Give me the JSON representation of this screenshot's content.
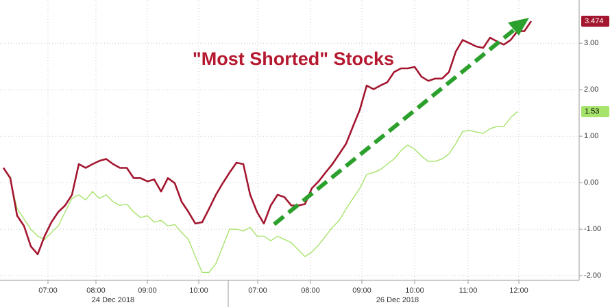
{
  "chart_data": {
    "type": "line",
    "title": "\"Most Shorted\" Stocks",
    "x": [
      0,
      1,
      2,
      3,
      4,
      5,
      6,
      7,
      8,
      9,
      10,
      11,
      12,
      13,
      14,
      15,
      16,
      17,
      18,
      19,
      20,
      21,
      22,
      23,
      24,
      25,
      26,
      27,
      28,
      29,
      30,
      31,
      32,
      33,
      34,
      35,
      36,
      37,
      38,
      39,
      40,
      41,
      42,
      43,
      44,
      45,
      46,
      47,
      48,
      49,
      50,
      51,
      52,
      53,
      54,
      55,
      56,
      57,
      58,
      59,
      60,
      61,
      62,
      63,
      64,
      65,
      66,
      67,
      68,
      69,
      70,
      71,
      72,
      73,
      74,
      75,
      76,
      77
    ],
    "series": [
      {
        "color": "#a3162f",
        "values": [
          0.32,
          0.1,
          -0.71,
          -0.93,
          -1.37,
          -1.54,
          -1.15,
          -0.85,
          -0.63,
          -0.49,
          -0.26,
          0.4,
          0.32,
          0.4,
          0.47,
          0.51,
          0.4,
          0.32,
          0.32,
          0.1,
          0.1,
          0.03,
          0.07,
          -0.19,
          0.1,
          -0.01,
          -0.41,
          -0.63,
          -0.88,
          -0.85,
          -0.56,
          -0.26,
          -0.01,
          0.22,
          0.43,
          0.4,
          -0.26,
          -0.63,
          -0.88,
          -0.49,
          -0.26,
          -0.31,
          -0.49,
          -0.49,
          -0.46,
          -0.12,
          0.03,
          0.22,
          0.4,
          0.62,
          0.84,
          1.21,
          1.57,
          2.09,
          2.01,
          2.09,
          2.16,
          2.38,
          2.46,
          2.46,
          2.49,
          2.28,
          2.19,
          2.24,
          2.24,
          2.38,
          2.82,
          3.07,
          3.0,
          2.93,
          2.9,
          3.12,
          3.04,
          2.97,
          3.07,
          3.26,
          3.26,
          3.474
        ]
      },
      {
        "color": "#a6e36b",
        "values": [
          0.32,
          0.07,
          -0.56,
          -0.78,
          -1.0,
          -1.15,
          -1.22,
          -1.07,
          -0.93,
          -0.63,
          -0.34,
          -0.26,
          -0.37,
          -0.19,
          -0.34,
          -0.26,
          -0.41,
          -0.49,
          -0.46,
          -0.63,
          -0.75,
          -0.71,
          -0.85,
          -0.81,
          -0.93,
          -0.9,
          -1.07,
          -1.22,
          -1.59,
          -1.93,
          -1.93,
          -1.74,
          -1.37,
          -1.0,
          -1.0,
          -1.04,
          -0.96,
          -1.15,
          -1.15,
          -1.25,
          -1.15,
          -1.22,
          -1.29,
          -1.44,
          -1.59,
          -1.49,
          -1.34,
          -1.15,
          -0.96,
          -0.81,
          -0.56,
          -0.34,
          -0.12,
          0.18,
          0.22,
          0.28,
          0.4,
          0.51,
          0.69,
          0.81,
          0.72,
          0.57,
          0.46,
          0.46,
          0.51,
          0.62,
          0.84,
          1.1,
          1.13,
          1.09,
          1.06,
          1.16,
          1.21,
          1.21,
          1.4,
          1.53,
          null,
          null
        ]
      }
    ],
    "xlim": [
      -0.5,
      84
    ],
    "xticks": [
      {
        "value": 6.5,
        "label": "07:00"
      },
      {
        "value": 13.5,
        "label": "08:00"
      },
      {
        "value": 21,
        "label": "09:00"
      },
      {
        "value": 28.5,
        "label": "10:00"
      },
      {
        "value": 37.1,
        "label": "07:00"
      },
      {
        "value": 44.8,
        "label": "08:00"
      },
      {
        "value": 52.3,
        "label": "09:00"
      },
      {
        "value": 60,
        "label": "10:00"
      },
      {
        "value": 67.8,
        "label": "11:00"
      },
      {
        "value": 75.2,
        "label": "12:00"
      }
    ],
    "day_ticks": [
      {
        "value": 16,
        "label": "24 Dec 2018"
      },
      {
        "value": 57.5,
        "label": "26 Dec 2018"
      }
    ],
    "ylim": [
      -2.1,
      3.93
    ],
    "yticks": [
      {
        "value": -2,
        "label": "-2.00"
      },
      {
        "value": -1,
        "label": "-1.00"
      },
      {
        "value": 0,
        "label": "0.00"
      },
      {
        "value": 1,
        "label": "1.00"
      },
      {
        "value": 2,
        "label": "2.00"
      },
      {
        "value": 3,
        "label": "3.00"
      }
    ],
    "grid": true
  }
}
